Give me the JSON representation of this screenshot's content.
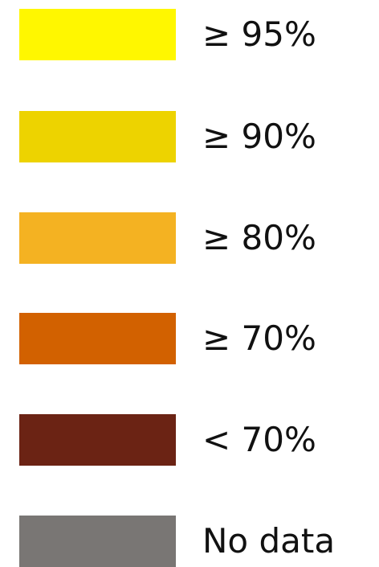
{
  "legend": {
    "items": [
      {
        "label": "≥ 95%",
        "color": "#FFF700"
      },
      {
        "label": "≥ 90%",
        "color": "#EDD300"
      },
      {
        "label": "≥ 80%",
        "color": "#F4B222"
      },
      {
        "label": "≥ 70%",
        "color": "#D26100"
      },
      {
        "label": "< 70%",
        "color": "#6B2314"
      },
      {
        "label": "No data",
        "color": "#797674"
      }
    ]
  }
}
